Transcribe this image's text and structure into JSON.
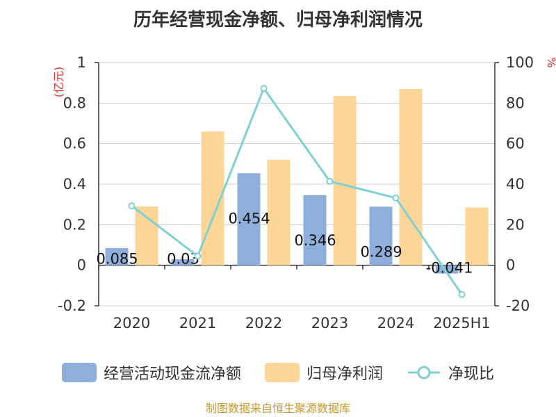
{
  "title": "历年经营现金净额、归母净利润情况",
  "source": "制图数据来自恒生聚源数据库",
  "colors": {
    "cash": "#8eaedc",
    "profit": "#fdd596",
    "ratio": "#7fd0d4",
    "unit": "#e03030",
    "text": "#333333",
    "grid": "#cccccc"
  },
  "chart_data": {
    "type": "bar",
    "categories": [
      "2020",
      "2021",
      "2022",
      "2023",
      "2024",
      "2025H1"
    ],
    "series": [
      {
        "name": "经营活动现金流净额",
        "type": "bar",
        "axis": "left",
        "values": [
          0.085,
          0.03,
          0.454,
          0.346,
          0.289,
          -0.041
        ],
        "labels": [
          "0.085",
          "0.03",
          "0.454",
          "0.346",
          "0.289",
          "-0.041"
        ]
      },
      {
        "name": "归母净利润",
        "type": "bar",
        "axis": "left",
        "values": [
          0.29,
          0.66,
          0.52,
          0.835,
          0.87,
          0.285
        ]
      },
      {
        "name": "净现比",
        "type": "line",
        "axis": "right",
        "values": [
          29.3,
          4.5,
          87.3,
          41.4,
          33.2,
          -14.4
        ]
      }
    ],
    "ylabel_left": "(亿元)",
    "ylabel_right": "%",
    "ylim_left": [
      -0.2,
      1
    ],
    "ylim_right": [
      -20,
      100
    ],
    "yticks_left": [
      "-0.2",
      "0",
      "0.2",
      "0.4",
      "0.6",
      "0.8",
      "1"
    ],
    "yticks_right": [
      "-20",
      "0",
      "20",
      "40",
      "60",
      "80",
      "100"
    ],
    "grid": true,
    "legend_position": "bottom"
  }
}
